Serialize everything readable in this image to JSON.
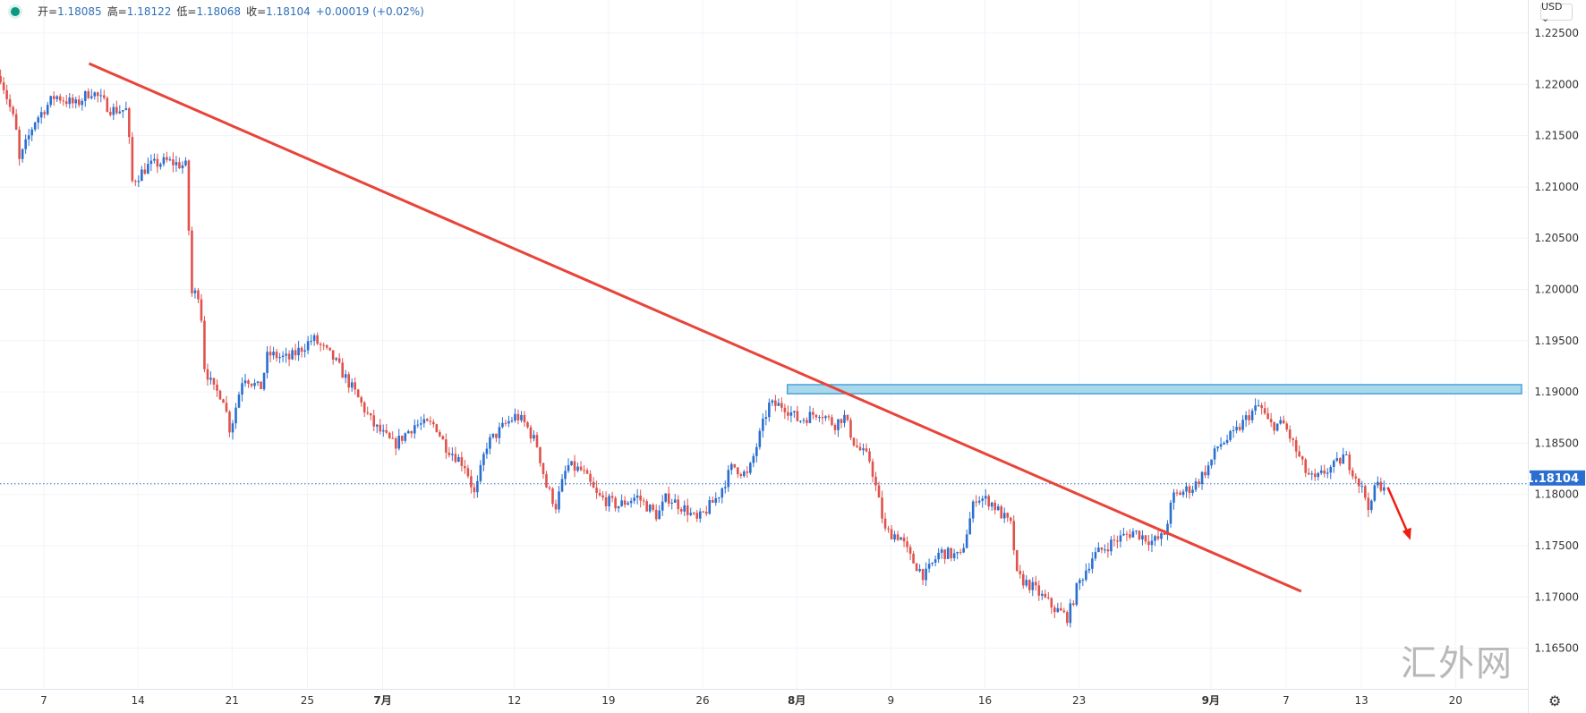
{
  "header": {
    "open_label": "开=",
    "open": "1.18085",
    "high_label": "高=",
    "high": "1.18122",
    "low_label": "低=",
    "low": "1.18068",
    "close_label": "收=",
    "close": "1.18104",
    "change": "+0.00019 (+0.02%)"
  },
  "currency_button": "USD ⌄",
  "watermark": "汇外网",
  "settings_icon": "gear-icon",
  "colors": {
    "up": "#2a6fd0",
    "down": "#e0524c",
    "trendline": "#e8443a",
    "zone": "#a9d8ea",
    "zone_border": "#4aa3df",
    "price_line": "#2a6fd0",
    "arrow": "#f01d12"
  },
  "chart_data": {
    "type": "candlestick",
    "symbol_price_unit": "USD",
    "y_ticks": [
      "1.22500",
      "1.22000",
      "1.21500",
      "1.21000",
      "1.20500",
      "1.20000",
      "1.19500",
      "1.19000",
      "1.18500",
      "1.18000",
      "1.17500",
      "1.17000",
      "1.16500"
    ],
    "ylim": [
      1.1606,
      1.2282
    ],
    "x_ticks": [
      {
        "label": "7",
        "day": 0
      },
      {
        "label": "14",
        "day": 5
      },
      {
        "label": "21",
        "day": 10
      },
      {
        "label": "25",
        "day": 14
      },
      {
        "label": "7月",
        "day": 18
      },
      {
        "label": "12",
        "day": 25
      },
      {
        "label": "19",
        "day": 30
      },
      {
        "label": "26",
        "day": 35
      },
      {
        "label": "8月",
        "day": 40
      },
      {
        "label": "9",
        "day": 45
      },
      {
        "label": "16",
        "day": 50
      },
      {
        "label": "23",
        "day": 55
      },
      {
        "label": "9月",
        "day": 62
      },
      {
        "label": "7",
        "day": 66
      },
      {
        "label": "13",
        "day": 70
      },
      {
        "label": "20",
        "day": 75
      }
    ],
    "x_unit": "trading days from Jun 7",
    "last_price": 1.18104,
    "last_price_label": "1.18104",
    "price_path": [
      [
        -2.3,
        1.2208
      ],
      [
        -1.5,
        1.2159
      ],
      [
        -1.3,
        1.2125
      ],
      [
        -0.5,
        1.2164
      ],
      [
        0.6,
        1.2189
      ],
      [
        1.7,
        1.218
      ],
      [
        2.5,
        1.2194
      ],
      [
        3.6,
        1.2175
      ],
      [
        4.4,
        1.2175
      ],
      [
        4.7,
        1.2105
      ],
      [
        5.5,
        1.212
      ],
      [
        6.5,
        1.2125
      ],
      [
        7.6,
        1.212
      ],
      [
        7.8,
        1.1996
      ],
      [
        8.3,
        1.1996
      ],
      [
        8.5,
        1.1927
      ],
      [
        9.0,
        1.1902
      ],
      [
        9.5,
        1.1897
      ],
      [
        9.9,
        1.1862
      ],
      [
        10.6,
        1.1917
      ],
      [
        11.5,
        1.1902
      ],
      [
        11.9,
        1.1937
      ],
      [
        13.0,
        1.1932
      ],
      [
        14.3,
        1.1952
      ],
      [
        15.4,
        1.1932
      ],
      [
        16.5,
        1.19
      ],
      [
        17.5,
        1.1868
      ],
      [
        18.6,
        1.1848
      ],
      [
        19.7,
        1.1868
      ],
      [
        20.8,
        1.1868
      ],
      [
        21.3,
        1.1848
      ],
      [
        22.4,
        1.1828
      ],
      [
        22.9,
        1.1798
      ],
      [
        23.5,
        1.1848
      ],
      [
        24.5,
        1.1868
      ],
      [
        25.1,
        1.1877
      ],
      [
        25.6,
        1.1868
      ],
      [
        26.2,
        1.1848
      ],
      [
        26.7,
        1.1808
      ],
      [
        27.2,
        1.1789
      ],
      [
        27.8,
        1.1828
      ],
      [
        28.6,
        1.1823
      ],
      [
        29.4,
        1.1798
      ],
      [
        30.5,
        1.1789
      ],
      [
        31.5,
        1.1798
      ],
      [
        32.6,
        1.1779
      ],
      [
        33.1,
        1.1798
      ],
      [
        34.2,
        1.1784
      ],
      [
        34.7,
        1.1774
      ],
      [
        35.8,
        1.1798
      ],
      [
        36.6,
        1.1828
      ],
      [
        37.4,
        1.1818
      ],
      [
        38.5,
        1.1887
      ],
      [
        39.3,
        1.1887
      ],
      [
        40.1,
        1.1872
      ],
      [
        41.2,
        1.1881
      ],
      [
        42.0,
        1.1868
      ],
      [
        42.5,
        1.1877
      ],
      [
        43.1,
        1.1848
      ],
      [
        43.9,
        1.1833
      ],
      [
        44.7,
        1.1764
      ],
      [
        45.5,
        1.1759
      ],
      [
        46.0,
        1.1739
      ],
      [
        46.8,
        1.172
      ],
      [
        47.6,
        1.1744
      ],
      [
        48.7,
        1.1739
      ],
      [
        49.5,
        1.1798
      ],
      [
        50.3,
        1.1793
      ],
      [
        51.4,
        1.1769
      ],
      [
        51.7,
        1.172
      ],
      [
        52.5,
        1.171
      ],
      [
        53.6,
        1.169
      ],
      [
        54.4,
        1.168
      ],
      [
        54.9,
        1.171
      ],
      [
        55.7,
        1.1739
      ],
      [
        56.8,
        1.1754
      ],
      [
        57.9,
        1.1764
      ],
      [
        58.9,
        1.1754
      ],
      [
        59.5,
        1.1759
      ],
      [
        60.0,
        1.1798
      ],
      [
        61.1,
        1.1808
      ],
      [
        61.9,
        1.1828
      ],
      [
        62.4,
        1.1848
      ],
      [
        63.2,
        1.1858
      ],
      [
        64.0,
        1.1877
      ],
      [
        64.6,
        1.1887
      ],
      [
        65.1,
        1.1868
      ],
      [
        65.9,
        1.1868
      ],
      [
        66.4,
        1.1848
      ],
      [
        67.0,
        1.1823
      ],
      [
        67.5,
        1.1813
      ],
      [
        68.1,
        1.1823
      ],
      [
        68.6,
        1.1828
      ],
      [
        69.1,
        1.1838
      ],
      [
        69.7,
        1.1818
      ],
      [
        70.2,
        1.1798
      ],
      [
        70.5,
        1.1784
      ],
      [
        70.7,
        1.1808
      ],
      [
        71.2,
        1.181
      ]
    ],
    "drawings": {
      "trendline": {
        "from": [
          2.4,
          1.22203
        ],
        "to": [
          66.8,
          1.17055
        ]
      },
      "resistance_zone": {
        "day_start": 39.5,
        "price_top": 1.19071,
        "price_bottom": 1.18982
      },
      "arrow": {
        "from": [
          71.4,
          1.18069
        ],
        "to": [
          72.6,
          1.17555
        ]
      }
    }
  }
}
